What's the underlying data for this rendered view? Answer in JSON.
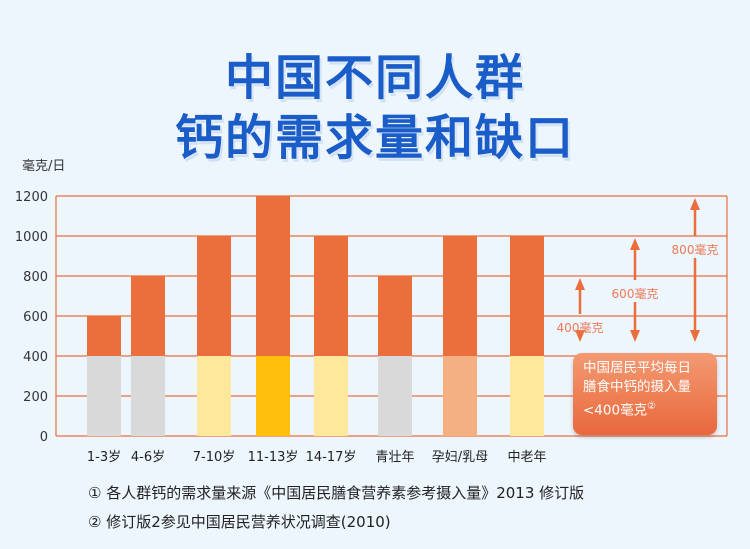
{
  "title": {
    "line1": "中国不同人群",
    "line2": "钙的需求量和缺口"
  },
  "chart_data": {
    "type": "bar",
    "ylabel": "毫克/日",
    "ylim": [
      0,
      1200
    ],
    "yticks": [
      0,
      200,
      400,
      600,
      800,
      1000,
      1200
    ],
    "categories": [
      "1-3岁",
      "4-6岁",
      "7-10岁",
      "11-13岁",
      "14-17岁",
      "青壮年",
      "孕妇/乳母",
      "中老年"
    ],
    "series": [
      {
        "name": "average intake",
        "values": [
          400,
          400,
          400,
          400,
          400,
          400,
          400,
          400
        ],
        "colors": [
          "#d9d9d9",
          "#d9d9d9",
          "#ffe79c",
          "#ffbf0a",
          "#ffe79c",
          "#d9d9d9",
          "#f4b083",
          "#ffe79c"
        ]
      },
      {
        "name": "requirement",
        "values": [
          600,
          800,
          1000,
          1200,
          1000,
          800,
          1000,
          1000
        ],
        "color": "#eb6f3d"
      }
    ],
    "gaps": [
      {
        "label": "400毫克",
        "value": 400
      },
      {
        "label": "600毫克",
        "value": 600
      },
      {
        "label": "800毫克",
        "value": 800
      }
    ],
    "annotation": {
      "lines": [
        "中国居民平均每日",
        "膳食中钙的摄入量",
        "<400毫克"
      ],
      "mark": "②"
    },
    "grid": true
  },
  "notes": [
    "① 各人群钙的需求量来源《中国居民膳食营养素参考摄入量》2013 修订版",
    "② 修订版2参见中国居民营养状况调查(2010)"
  ]
}
